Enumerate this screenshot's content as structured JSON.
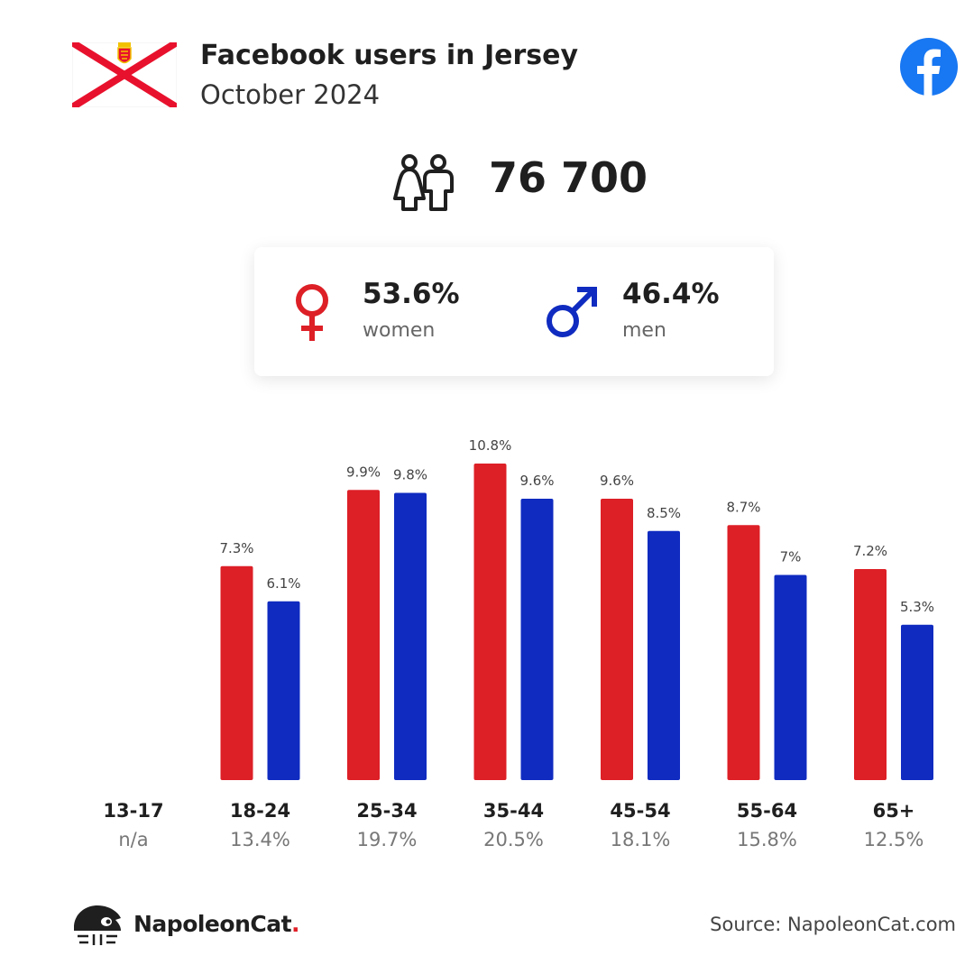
{
  "header": {
    "title": "Facebook users in Jersey",
    "subtitle": "October 2024"
  },
  "icons": {
    "flag": "jersey-flag-icon",
    "platform": "facebook-icon",
    "people": "people-icon",
    "female": "female-symbol-icon",
    "male": "male-symbol-icon",
    "logo": "napoleoncat-logo-icon"
  },
  "summary": {
    "total_users": "76 700",
    "women": {
      "percent": "53.6%",
      "label": "women"
    },
    "men": {
      "percent": "46.4%",
      "label": "men"
    }
  },
  "colors": {
    "women": "#dd1f26",
    "men": "#0f2bc0",
    "flag_red": "#e8112d",
    "facebook_blue": "#1877f2",
    "brand_red": "#e01f26"
  },
  "chart_data": {
    "type": "bar",
    "categories": [
      "13-17",
      "18-24",
      "25-34",
      "35-44",
      "45-54",
      "55-64",
      "65+"
    ],
    "group_shares": [
      "n/a",
      "13.4%",
      "19.7%",
      "20.5%",
      "18.1%",
      "15.8%",
      "12.5%"
    ],
    "series": [
      {
        "name": "women",
        "values": [
          null,
          7.3,
          9.9,
          10.8,
          9.6,
          8.7,
          7.2
        ],
        "labels": [
          "",
          "7.3%",
          "9.9%",
          "10.8%",
          "9.6%",
          "8.7%",
          "7.2%"
        ]
      },
      {
        "name": "men",
        "values": [
          null,
          6.1,
          9.8,
          9.6,
          8.5,
          7.0,
          5.3
        ],
        "labels": [
          "",
          "6.1%",
          "9.8%",
          "9.6%",
          "8.5%",
          "7%",
          "5.3%"
        ]
      }
    ],
    "ylim": [
      0,
      10.8
    ],
    "grid": false,
    "legend": "none"
  },
  "footer": {
    "brand": "NapoleonCat",
    "brand_dot": ".",
    "source": "Source: NapoleonCat.com"
  }
}
